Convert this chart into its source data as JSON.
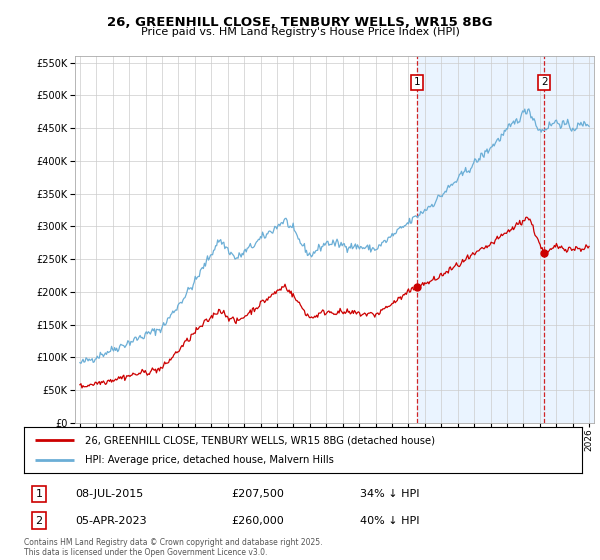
{
  "title": "26, GREENHILL CLOSE, TENBURY WELLS, WR15 8BG",
  "subtitle": "Price paid vs. HM Land Registry's House Price Index (HPI)",
  "hpi_label": "HPI: Average price, detached house, Malvern Hills",
  "price_label": "26, GREENHILL CLOSE, TENBURY WELLS, WR15 8BG (detached house)",
  "hpi_color": "#6baed6",
  "price_color": "#cc0000",
  "shade_color": "#ddeeff",
  "marker1_date_x": 2015.52,
  "marker2_date_x": 2023.26,
  "marker1_price": 207500,
  "marker2_price": 260000,
  "marker1_label": "08-JUL-2015",
  "marker2_label": "05-APR-2023",
  "marker1_hpi_text": "34% ↓ HPI",
  "marker2_hpi_text": "40% ↓ HPI",
  "footnote": "Contains HM Land Registry data © Crown copyright and database right 2025.\nThis data is licensed under the Open Government Licence v3.0.",
  "ylim": [
    0,
    560000
  ],
  "xlim": [
    1994.7,
    2026.3
  ],
  "background_color": "#ffffff",
  "grid_color": "#cccccc"
}
